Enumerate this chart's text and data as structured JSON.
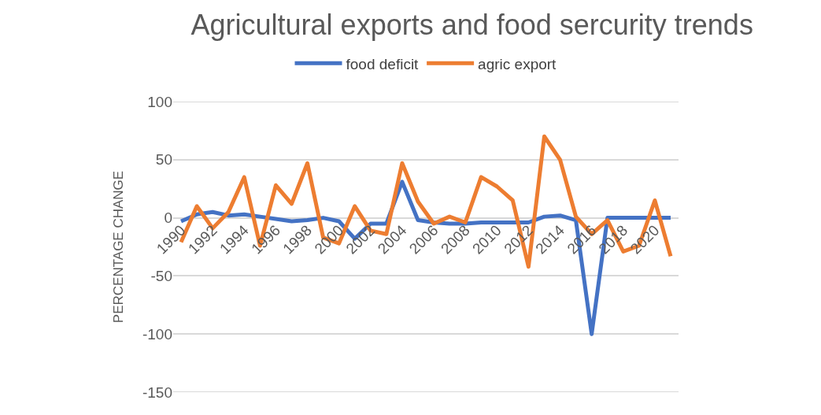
{
  "chart_data": {
    "type": "line",
    "title": "Agricultural exports and food sercurity trends",
    "ylabel": "PERCENTAGE CHANGE",
    "categories": [
      "1990",
      null,
      "1992",
      null,
      "1994",
      null,
      "1996",
      null,
      "1998",
      null,
      "2000",
      null,
      "2002",
      null,
      "2004",
      null,
      "2006",
      null,
      "2008",
      null,
      "2010",
      null,
      "2012",
      null,
      "2014",
      null,
      "2016",
      null,
      "2018",
      null,
      "2020",
      null
    ],
    "series": [
      {
        "name": "food deficit",
        "color": "#4472c4",
        "values": [
          -3,
          3,
          5,
          2,
          3,
          1,
          -1,
          -3,
          -2,
          0,
          -3,
          -18,
          -5,
          -5,
          31,
          -2,
          -4,
          -5,
          -5,
          -4,
          -4,
          -4,
          -4,
          1,
          2,
          -2,
          -100,
          0,
          0,
          0,
          0,
          0
        ]
      },
      {
        "name": "agric export",
        "color": "#ed7d31",
        "values": [
          -21,
          10,
          -9,
          5,
          35,
          -24,
          28,
          12,
          47,
          -17,
          -22,
          10,
          -11,
          -14,
          47,
          14,
          -5,
          1,
          -4,
          35,
          27,
          15,
          -42,
          70,
          50,
          1,
          -14,
          -2,
          -29,
          -24,
          15,
          -33
        ]
      }
    ],
    "ylim": [
      -150,
      100
    ],
    "yticks": [
      -150,
      -100,
      -50,
      0,
      50,
      100
    ],
    "grid": "y",
    "legend": "top",
    "marker": "none",
    "line_style": "solid"
  }
}
